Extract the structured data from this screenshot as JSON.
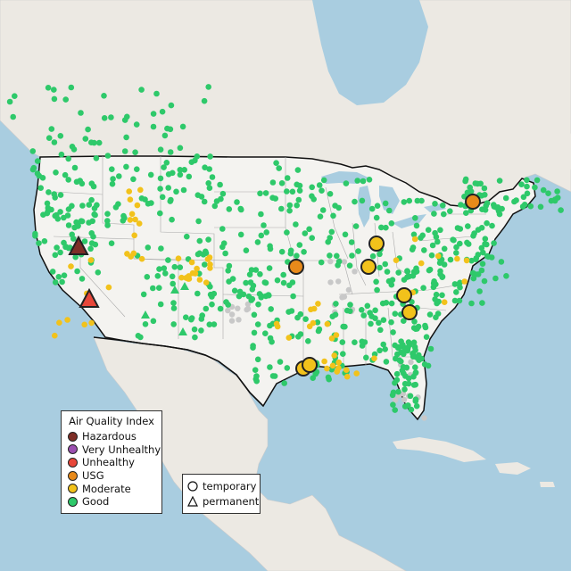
{
  "legend": {
    "title": "Air Quality Index",
    "categories": [
      {
        "label": "Hazardous",
        "color": "#7e2e26"
      },
      {
        "label": "Very Unhealthy",
        "color": "#9b4fb0"
      },
      {
        "label": "Unhealthy",
        "color": "#e8473a"
      },
      {
        "label": "USG",
        "color": "#e88a1a"
      },
      {
        "label": "Moderate",
        "color": "#f2c21b"
      },
      {
        "label": "Good",
        "color": "#2ec96a"
      }
    ]
  },
  "type_legend": {
    "temporary": "temporary",
    "permanent": "permanent"
  },
  "colors": {
    "ocean": "#a9cde0",
    "land": "#ece9e3",
    "us_land": "#f4f3f0",
    "no_data": "#c8c8c8"
  },
  "highlighted_monitors": [
    {
      "aqi": "Hazardous",
      "type": "permanent"
    },
    {
      "aqi": "Unhealthy",
      "type": "permanent"
    },
    {
      "aqi": "USG",
      "type": "temporary"
    },
    {
      "aqi": "USG",
      "type": "temporary"
    },
    {
      "aqi": "Moderate",
      "type": "temporary"
    },
    {
      "aqi": "Moderate",
      "type": "temporary"
    },
    {
      "aqi": "Moderate",
      "type": "temporary"
    },
    {
      "aqi": "Moderate",
      "type": "temporary"
    },
    {
      "aqi": "Moderate",
      "type": "temporary"
    },
    {
      "aqi": "Moderate",
      "type": "temporary"
    }
  ]
}
